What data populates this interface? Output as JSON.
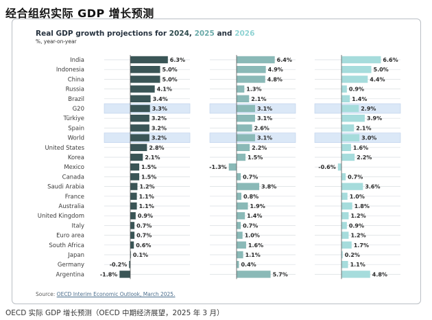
{
  "headline": "经合组织实际 GDP 增长预测",
  "caption": "OECD 实际 GDP 增长预测（OECD 中期经济展望，2025 年 3 月）",
  "chart_data": {
    "type": "bar",
    "orientation": "horizontal",
    "title_prefix": "Real GDP growth projections for ",
    "title_parts": [
      {
        "text": "2024",
        "color": "#2e4a4d"
      },
      {
        "text": ", ",
        "color": "#26323f"
      },
      {
        "text": "2025",
        "color": "#6aa9a8"
      },
      {
        "text": " and ",
        "color": "#26323f"
      },
      {
        "text": "2026",
        "color": "#8fd3d3"
      }
    ],
    "subtitle": "%, year-on-year",
    "source_label": "Source: ",
    "source_link": "OECD Interim Economic Outlook, March 2025.",
    "categories": [
      "India",
      "Indonesia",
      "China",
      "Russia",
      "Brazil",
      "G20",
      "Türkiye",
      "Spain",
      "World",
      "United States",
      "Korea",
      "Mexico",
      "Canada",
      "Saudi Arabia",
      "France",
      "Australia",
      "United Kingdom",
      "Italy",
      "Euro area",
      "South Africa",
      "Japan",
      "Germany",
      "Argentina"
    ],
    "highlighted": [
      "G20",
      "World"
    ],
    "highlight_color": "#dbe8f7",
    "series": [
      {
        "name": "2024",
        "color": "#3a5556",
        "values": [
          6.3,
          5.0,
          5.0,
          4.1,
          3.4,
          3.3,
          3.2,
          3.2,
          3.2,
          2.8,
          2.1,
          1.5,
          1.5,
          1.2,
          1.1,
          1.1,
          0.9,
          0.7,
          0.7,
          0.6,
          0.1,
          -0.2,
          -1.8
        ]
      },
      {
        "name": "2025",
        "color": "#8ab9b7",
        "values": [
          6.4,
          4.9,
          4.8,
          1.3,
          2.1,
          3.1,
          3.1,
          2.6,
          3.1,
          2.2,
          1.5,
          -1.3,
          0.7,
          3.8,
          0.8,
          1.9,
          1.4,
          0.7,
          1.0,
          1.6,
          1.1,
          0.4,
          5.7
        ]
      },
      {
        "name": "2026",
        "color": "#a6dcdc",
        "values": [
          6.6,
          5.0,
          4.4,
          0.9,
          1.4,
          2.9,
          3.9,
          2.1,
          3.0,
          1.6,
          2.2,
          -0.6,
          0.7,
          3.6,
          1.0,
          1.8,
          1.2,
          0.9,
          1.2,
          1.7,
          0.2,
          1.1,
          4.8
        ]
      }
    ]
  }
}
